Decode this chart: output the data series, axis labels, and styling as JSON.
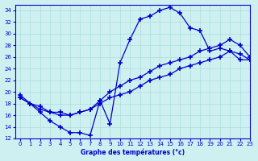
{
  "background_color": "#cff0f0",
  "grid_color": "#aadddd",
  "line_color": "#0000cc",
  "marker": "+",
  "markersize": 4,
  "markeredgewidth": 1.2,
  "linewidth": 0.9,
  "xlim": [
    -0.5,
    23
  ],
  "ylim": [
    12,
    35
  ],
  "xticks": [
    0,
    1,
    2,
    3,
    4,
    5,
    6,
    7,
    8,
    9,
    10,
    11,
    12,
    13,
    14,
    15,
    16,
    17,
    18,
    19,
    20,
    21,
    22,
    23
  ],
  "yticks": [
    12,
    14,
    16,
    18,
    20,
    22,
    24,
    26,
    28,
    30,
    32,
    34
  ],
  "xlabel": "Graphe des températures (°c)",
  "series": [
    {
      "x": [
        0,
        1,
        2,
        3,
        4,
        5,
        6,
        7,
        8,
        9,
        10,
        11,
        12,
        13,
        14,
        15,
        16,
        17,
        18,
        19,
        20,
        21,
        22,
        23
      ],
      "y": [
        19.5,
        18,
        16.5,
        15,
        14,
        13,
        13,
        12.5,
        18.5,
        14.5,
        25,
        29,
        32.5,
        33,
        34,
        34.5,
        33.5,
        31,
        30.5,
        27,
        27.5,
        27,
        25.5,
        25.5
      ]
    },
    {
      "x": [
        0,
        1,
        2,
        3,
        4,
        5,
        6,
        7,
        8,
        9,
        10,
        11,
        12,
        13,
        14,
        15,
        16,
        17,
        18,
        19,
        20,
        21,
        22,
        23
      ],
      "y": [
        19,
        18,
        17,
        16.5,
        16.5,
        16,
        16.5,
        17,
        18.5,
        20,
        21,
        22,
        22.5,
        23.5,
        24.5,
        25,
        25.5,
        26,
        27,
        27.5,
        28,
        29,
        28,
        26
      ]
    },
    {
      "x": [
        0,
        1,
        2,
        3,
        4,
        5,
        6,
        7,
        8,
        9,
        10,
        11,
        12,
        13,
        14,
        15,
        16,
        17,
        18,
        19,
        20,
        21,
        22,
        23
      ],
      "y": [
        19,
        18,
        17.5,
        16.5,
        16,
        16,
        16.5,
        17,
        18,
        19,
        19.5,
        20,
        21,
        22,
        22.5,
        23,
        24,
        24.5,
        25,
        25.5,
        26,
        27,
        26.5,
        25.5
      ]
    }
  ]
}
